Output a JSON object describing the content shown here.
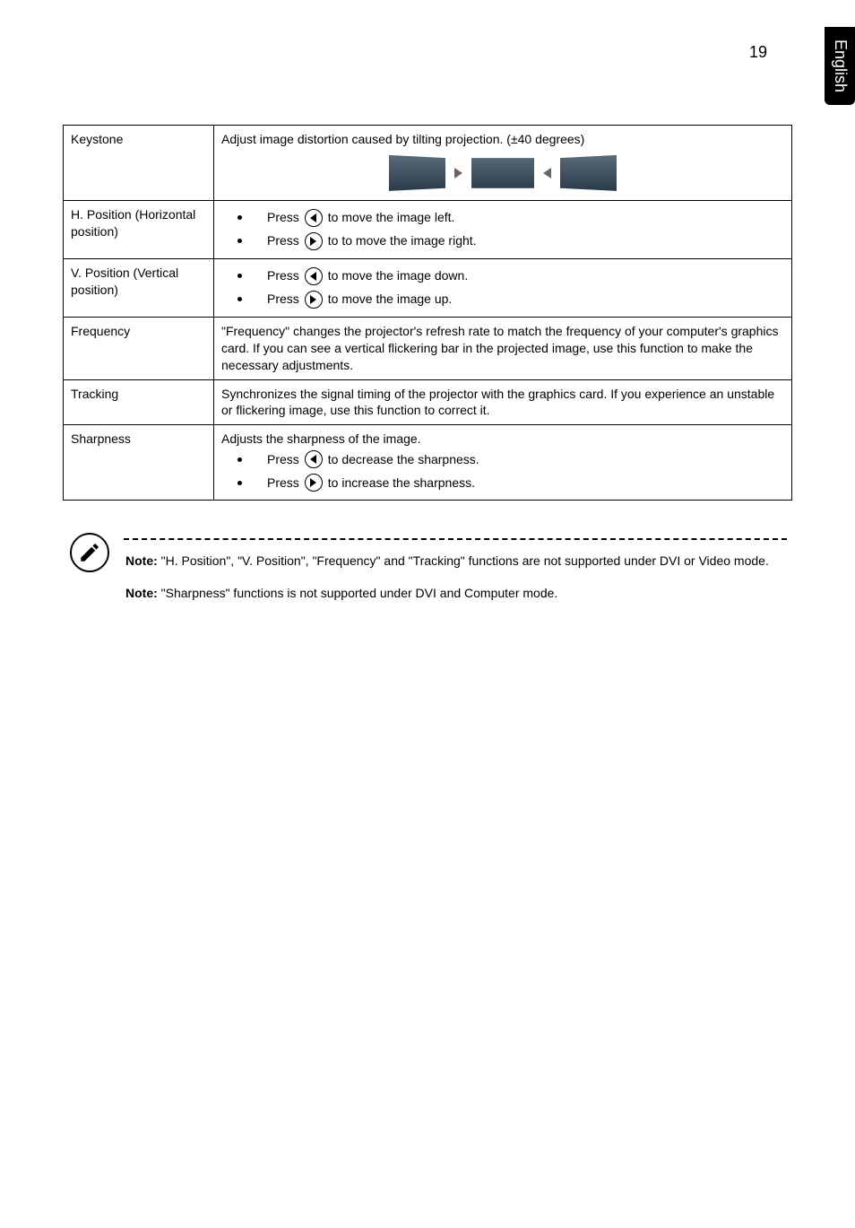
{
  "page": {
    "number": "19",
    "language_tab": "English"
  },
  "table": {
    "rows": [
      {
        "label": "Keystone",
        "desc": "Adjust image distortion caused by tilting projection. (±40 degrees)",
        "type": "keystone"
      },
      {
        "label": "H. Position (Horizontal position)",
        "type": "presslist",
        "items": [
          {
            "press": "Press",
            "dir": "left",
            "after": "to move the image left."
          },
          {
            "press": "Press",
            "dir": "right",
            "after": "to to move the image right."
          }
        ]
      },
      {
        "label": "V. Position (Vertical position)",
        "type": "presslist",
        "items": [
          {
            "press": "Press",
            "dir": "left",
            "after": "to move the image down."
          },
          {
            "press": "Press",
            "dir": "right",
            "after": "to move the image up."
          }
        ]
      },
      {
        "label": "Frequency",
        "desc": "\"Frequency\" changes the projector's refresh rate to match the frequency of your computer's graphics card. If you can see a vertical flickering bar in the projected image, use this function to make the necessary adjustments.",
        "type": "text"
      },
      {
        "label": "Tracking",
        "desc": "Synchronizes the signal timing of the projector with the graphics card. If you experience an unstable or flickering image, use this function to correct it.",
        "type": "text"
      },
      {
        "label": "Sharpness",
        "desc": "Adjusts the sharpness of the image.",
        "type": "text_presslist",
        "items": [
          {
            "press": "Press",
            "dir": "left",
            "after": "to decrease the sharpness."
          },
          {
            "press": "Press",
            "dir": "right",
            "after": "to increase the sharpness."
          }
        ]
      }
    ]
  },
  "notes": {
    "n1_bold": "Note:",
    "n1_rest": " \"H. Position\", \"V. Position\", \"Frequency\" and \"Tracking\" functions are not supported under DVI or Video mode.",
    "n2_bold": "Note:",
    "n2_rest": " \"Sharpness\" functions is not supported under DVI and Computer mode."
  }
}
